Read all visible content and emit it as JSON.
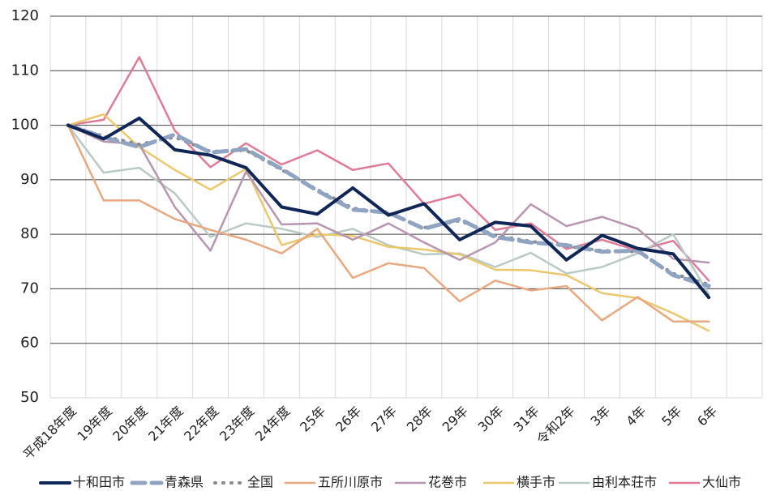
{
  "chart_data": {
    "type": "line",
    "categories": [
      "平成18年度",
      "19年度",
      "20年度",
      "21年度",
      "22年度",
      "23年度",
      "24年度",
      "25年",
      "26年",
      "27年",
      "28年",
      "29年",
      "30年",
      "31年",
      "令和2年",
      "3年",
      "4年",
      "5年",
      "6年",
      null
    ],
    "series": [
      {
        "name": "十和田市",
        "color": "#0f2657",
        "style": "solid",
        "width": 4,
        "values": [
          100,
          97.5,
          101.3,
          95.5,
          94.5,
          92.2,
          85,
          83.7,
          88.5,
          83.5,
          85.6,
          79,
          82.2,
          81.5,
          75.3,
          79.8,
          77.4,
          76.4,
          68.4,
          null
        ]
      },
      {
        "name": "青森県",
        "color": "#8fa3c2",
        "style": "dashed",
        "width": 5,
        "values": [
          100,
          97.8,
          96,
          98.3,
          95,
          95.6,
          92,
          88,
          84.5,
          84,
          81,
          82.8,
          79.5,
          78.5,
          78,
          76.8,
          77,
          72.5,
          70.5,
          null
        ]
      },
      {
        "name": "全国",
        "color": "#8a8a8a",
        "style": "dotted",
        "width": 4,
        "values": [
          100,
          98,
          96.5,
          97.8,
          95.2,
          95.4,
          91.8,
          88.2,
          84.8,
          83.8,
          81.2,
          82.5,
          79.8,
          78.7,
          77.8,
          77,
          76.8,
          72.8,
          70.8,
          null
        ]
      },
      {
        "name": "五所川原市",
        "color": "#e8a880",
        "style": "solid",
        "width": 2.5,
        "values": [
          100,
          86.2,
          86.2,
          82.8,
          80.8,
          79,
          76.5,
          81,
          72,
          74.7,
          73.8,
          67.7,
          71.5,
          69.7,
          70.5,
          64.2,
          68.5,
          64,
          64,
          null
        ]
      },
      {
        "name": "花巻市",
        "color": "#b895b0",
        "style": "solid",
        "width": 2.5,
        "values": [
          100,
          97,
          96.5,
          85,
          77,
          91.5,
          81.8,
          82,
          79,
          82,
          78.5,
          75.3,
          78.5,
          85.5,
          81.5,
          83.2,
          81,
          75.5,
          74.8,
          null
        ]
      },
      {
        "name": "横手市",
        "color": "#ecc86c",
        "style": "solid",
        "width": 2.5,
        "values": [
          100,
          102,
          96,
          91.8,
          88.2,
          92,
          78,
          80,
          79.7,
          77.7,
          77.2,
          76.3,
          73.5,
          73.4,
          72.5,
          69.2,
          68.3,
          65.5,
          62.3,
          null
        ]
      },
      {
        "name": "由利本荘市",
        "color": "#b8cac3",
        "style": "solid",
        "width": 2.5,
        "values": [
          100,
          91.3,
          92.2,
          87.5,
          79.5,
          82,
          81,
          79.5,
          81,
          78,
          76.3,
          76.5,
          74,
          76.6,
          72.8,
          74,
          76.5,
          80,
          69,
          null
        ]
      },
      {
        "name": "大仙市",
        "color": "#e07b97",
        "style": "solid",
        "width": 2.5,
        "values": [
          100,
          101,
          112.5,
          99,
          92.3,
          96.7,
          92.8,
          95.4,
          91.8,
          93,
          85.6,
          87.3,
          80.8,
          82,
          77.3,
          79,
          77,
          78.8,
          71.5,
          null
        ]
      }
    ],
    "ylim": [
      50,
      120
    ],
    "yticks": [
      50,
      60,
      70,
      80,
      90,
      100,
      110,
      120
    ],
    "grid": true,
    "legend": "bottom"
  }
}
